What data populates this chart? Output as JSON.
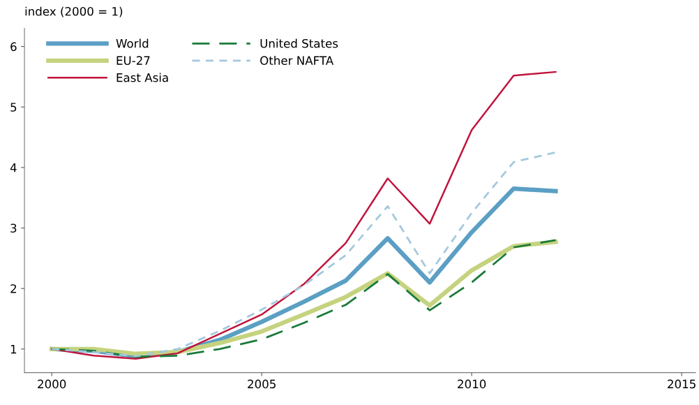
{
  "chart_data": {
    "type": "line",
    "ylabel": "index (2000 = 1)",
    "x": [
      2000,
      2001,
      2002,
      2003,
      2004,
      2005,
      2006,
      2007,
      2008,
      2009,
      2010,
      2011,
      2012
    ],
    "series": [
      {
        "name": "World",
        "color": "#5b9fc4",
        "line_style": "solid",
        "values": [
          1.0,
          0.97,
          0.88,
          0.95,
          1.15,
          1.45,
          1.78,
          2.13,
          2.83,
          2.1,
          2.93,
          3.65,
          3.61
        ]
      },
      {
        "name": "EU-27",
        "color": "#c5d37f",
        "line_style": "solid",
        "values": [
          1.0,
          1.0,
          0.92,
          0.95,
          1.1,
          1.29,
          1.57,
          1.86,
          2.25,
          1.72,
          2.3,
          2.7,
          2.77
        ]
      },
      {
        "name": "East Asia",
        "color": "#c0143c",
        "line_style": "solid",
        "values": [
          1.0,
          0.89,
          0.84,
          0.93,
          1.25,
          1.57,
          2.07,
          2.75,
          3.82,
          3.07,
          4.62,
          5.52,
          5.58
        ]
      },
      {
        "name": "United States",
        "color": "#1a7a3a",
        "line_style": "dashed",
        "values": [
          1.0,
          0.97,
          0.87,
          0.89,
          1.0,
          1.16,
          1.43,
          1.73,
          2.24,
          1.64,
          2.1,
          2.68,
          2.8
        ]
      },
      {
        "name": "Other NAFTA",
        "color": "#a3c8de",
        "line_style": "dashed",
        "values": [
          1.0,
          0.95,
          0.88,
          1.0,
          1.3,
          1.65,
          2.05,
          2.55,
          3.36,
          2.25,
          3.25,
          4.09,
          4.25
        ]
      }
    ],
    "xlim": [
      1999.35,
      2015.33
    ],
    "ylim": [
      0.61,
      6.3
    ],
    "xticks": [
      2000,
      2005,
      2010,
      2015
    ],
    "yticks": [
      1,
      2,
      3,
      4,
      5,
      6
    ],
    "grid": false,
    "legend": "top left",
    "marker": "none"
  }
}
